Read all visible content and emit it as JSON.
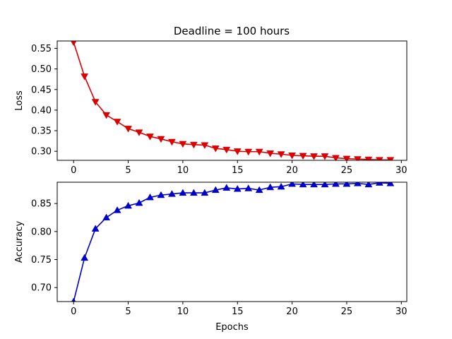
{
  "chart_data": [
    {
      "type": "line",
      "title": "Deadline = 100 hours",
      "xlabel": "",
      "ylabel": "Loss",
      "xlim": [
        -1.5,
        30.5
      ],
      "ylim": [
        0.278,
        0.568
      ],
      "xticks": [
        "0",
        "5",
        "10",
        "15",
        "20",
        "25",
        "30"
      ],
      "yticks": [
        "0.30",
        "0.35",
        "0.40",
        "0.45",
        "0.50",
        "0.55"
      ],
      "grid": false,
      "color": "#dd0000",
      "marker": "triangle-down",
      "series": [
        {
          "x": [
            0,
            1,
            2,
            3,
            4,
            5,
            6,
            7,
            8,
            9,
            10,
            11,
            12,
            13,
            14,
            15,
            16,
            17,
            18,
            19,
            20,
            21,
            22,
            23,
            24,
            25,
            26,
            27,
            28,
            29
          ],
          "values": [
            0.565,
            0.482,
            0.42,
            0.388,
            0.372,
            0.355,
            0.346,
            0.336,
            0.33,
            0.323,
            0.318,
            0.316,
            0.315,
            0.307,
            0.304,
            0.3,
            0.299,
            0.299,
            0.295,
            0.293,
            0.29,
            0.289,
            0.288,
            0.288,
            0.284,
            0.282,
            0.281,
            0.28,
            0.279,
            0.279
          ]
        }
      ]
    },
    {
      "type": "line",
      "title": "",
      "xlabel": "Epochs",
      "ylabel": "Accuracy",
      "xlim": [
        -1.5,
        30.5
      ],
      "ylim": [
        0.675,
        0.888
      ],
      "xticks": [
        "0",
        "5",
        "10",
        "15",
        "20",
        "25",
        "30"
      ],
      "yticks": [
        "0.70",
        "0.75",
        "0.80",
        "0.85"
      ],
      "grid": false,
      "color": "#0000cc",
      "marker": "triangle-up",
      "series": [
        {
          "x": [
            0,
            1,
            2,
            3,
            4,
            5,
            6,
            7,
            8,
            9,
            10,
            11,
            12,
            13,
            14,
            15,
            16,
            17,
            18,
            19,
            20,
            21,
            22,
            23,
            24,
            25,
            26,
            27,
            28,
            29
          ],
          "values": [
            0.675,
            0.753,
            0.805,
            0.825,
            0.838,
            0.846,
            0.851,
            0.861,
            0.865,
            0.867,
            0.869,
            0.869,
            0.869,
            0.874,
            0.878,
            0.876,
            0.877,
            0.874,
            0.879,
            0.88,
            0.885,
            0.884,
            0.884,
            0.884,
            0.885,
            0.885,
            0.886,
            0.884,
            0.887,
            0.886
          ]
        }
      ]
    }
  ]
}
